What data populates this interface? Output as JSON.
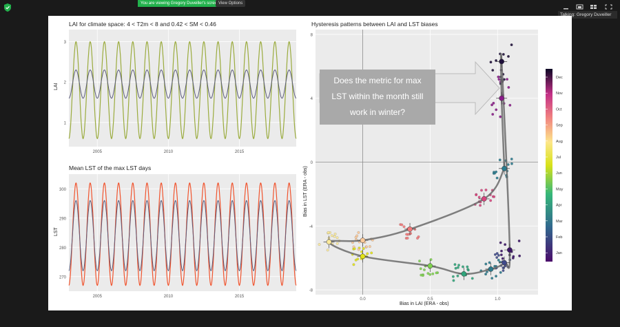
{
  "share_banner": {
    "viewing": "You are viewing Gregory Duveiller's screen",
    "view_options": "View Options"
  },
  "talking": "Talking: Gregory Duveiller",
  "icons": [
    "shield-icon",
    "minimize-icon",
    "speaker-view-icon",
    "gallery-view-icon",
    "fullscreen-icon"
  ],
  "colors": {
    "share_banner": "#22b14c",
    "panel_bg": "#ebebeb",
    "lai_line": "#9aab3d",
    "lst_line": "#f0532d",
    "mean_line": "#5a5a7a",
    "curve": "#6b6b6b"
  },
  "lai_panel": {
    "title": "LAI for climate space: 4 < T2m < 8 and 0.42 < SM < 0.46",
    "ylabel": "LAI",
    "yticks": [
      "1",
      "2",
      "3"
    ],
    "xticks": [
      "2005",
      "2010",
      "2015"
    ]
  },
  "lst_panel": {
    "title": "Mean LST of the max LST days",
    "ylabel": "LST",
    "yticks": [
      "270",
      "280",
      "290",
      "300"
    ],
    "xticks": [
      "2005",
      "2010",
      "2015"
    ]
  },
  "hyst_panel": {
    "title": "Hysteresis patterns between LAI and LST biases",
    "xlabel": "Bias in LAI (ERA - obs)",
    "ylabel": "Bias in LST (ERA - obs)",
    "xticks": [
      "0.0",
      "0.5",
      "1.0"
    ],
    "yticks": [
      "-8",
      "-4",
      "0",
      "4",
      "8"
    ],
    "callout": [
      "Does the metric for max",
      "LST within the month still",
      "work in winter?"
    ],
    "months": [
      "Dec",
      "Nov",
      "Oct",
      "Sep",
      "Aug",
      "Jul",
      "Jun",
      "May",
      "Apr",
      "Mar",
      "Feb",
      "Jan"
    ]
  },
  "chart_data": [
    {
      "type": "line",
      "title": "LAI for climate space: 4 < T2m < 8 and 0.42 < SM < 0.46",
      "ylabel": "LAI",
      "xlim": [
        2003,
        2019
      ],
      "ylim": [
        0.4,
        3.3
      ],
      "x_start": 2003,
      "periods": 16,
      "series": [
        {
          "trough": 0.6,
          "peak": 3.0
        },
        {
          "trough": 1.6,
          "peak": 2.3
        }
      ]
    },
    {
      "type": "line",
      "title": "Mean LST of the max LST days",
      "ylabel": "LST",
      "xlim": [
        2003,
        2019
      ],
      "ylim": [
        265,
        305
      ],
      "x_start": 2003,
      "periods": 16,
      "series": [
        {
          "trough": 267,
          "peak": 302
        },
        {
          "trough": 272,
          "peak": 296
        }
      ]
    },
    {
      "type": "scatter",
      "title": "Hysteresis patterns between LAI and LST biases",
      "xlabel": "Bias in LAI (ERA - obs)",
      "ylabel": "Bias in LST (ERA - obs)",
      "xlim": [
        -0.35,
        1.3
      ],
      "ylim": [
        -8.3,
        8.3
      ],
      "months": [
        "Jan",
        "Feb",
        "Mar",
        "Apr",
        "May",
        "Jun",
        "Jul",
        "Aug",
        "Sep",
        "Oct",
        "Nov",
        "Dec"
      ],
      "monthly_means": [
        {
          "month": "Jan",
          "x": 1.09,
          "y": -5.5
        },
        {
          "month": "Feb",
          "x": 1.05,
          "y": -6.3
        },
        {
          "month": "Mar",
          "x": 0.95,
          "y": -6.7
        },
        {
          "month": "Apr",
          "x": 0.75,
          "y": -7.0
        },
        {
          "month": "May",
          "x": 0.5,
          "y": -6.5
        },
        {
          "month": "Jun",
          "x": 0.0,
          "y": -5.9
        },
        {
          "month": "Jul",
          "x": -0.25,
          "y": -5.0
        },
        {
          "month": "Aug",
          "x": 0.0,
          "y": -4.9
        },
        {
          "month": "Sep",
          "x": 0.35,
          "y": -4.2
        },
        {
          "month": "Oct",
          "x": 0.9,
          "y": -2.3
        },
        {
          "month": "Nov",
          "x": 1.03,
          "y": 4.0
        },
        {
          "month": "Dec",
          "x": 1.03,
          "y": 6.3
        },
        {
          "month": "Jan2",
          "x": 1.05,
          "y": -0.4
        }
      ]
    }
  ]
}
